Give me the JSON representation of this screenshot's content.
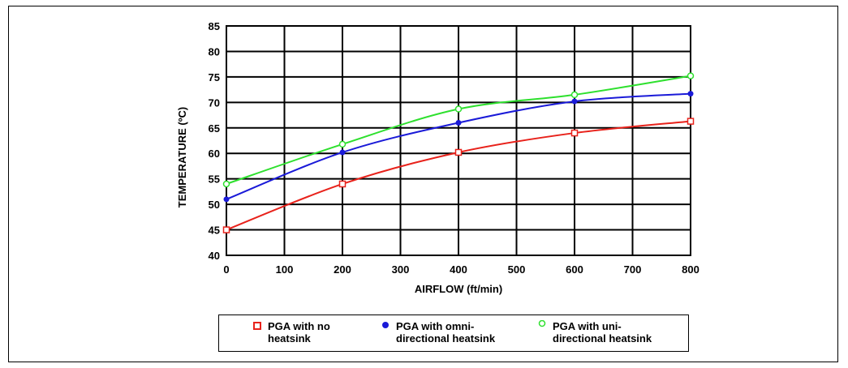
{
  "chart_data": {
    "type": "line",
    "title": "",
    "xlabel": "AIRFLOW (ft/min)",
    "ylabel": "TEMPERATURE (ºC)",
    "xlim": [
      0,
      800
    ],
    "ylim": [
      40,
      85
    ],
    "x_ticks": [
      "0",
      "100",
      "200",
      "300",
      "400",
      "500",
      "600",
      "700",
      "800"
    ],
    "y_ticks": [
      "40",
      "45",
      "50",
      "55",
      "60",
      "65",
      "70",
      "75",
      "80",
      "85"
    ],
    "grid": true,
    "legend_position": "bottom",
    "x": [
      0,
      200,
      400,
      600,
      800
    ],
    "series": [
      {
        "name": "PGA with no heatsink",
        "legend_lines": [
          "PGA with no",
          "heatsink"
        ],
        "color": "#e8221b",
        "marker": "open-square",
        "values": [
          45,
          54,
          60.2,
          64,
          66.3
        ]
      },
      {
        "name": "PGA with omni-directional heatsink",
        "legend_lines": [
          "PGA with omni-",
          "directional heatsink"
        ],
        "color": "#1a1ad8",
        "marker": "filled-circle",
        "values": [
          51,
          60.2,
          66,
          70.2,
          71.7
        ]
      },
      {
        "name": "PGA with uni-directional heatsink",
        "legend_lines": [
          "PGA with uni-",
          "directional heatsink"
        ],
        "color": "#2ee02e",
        "marker": "open-circle",
        "values": [
          54,
          61.8,
          68.7,
          71.5,
          75.2
        ]
      }
    ]
  }
}
